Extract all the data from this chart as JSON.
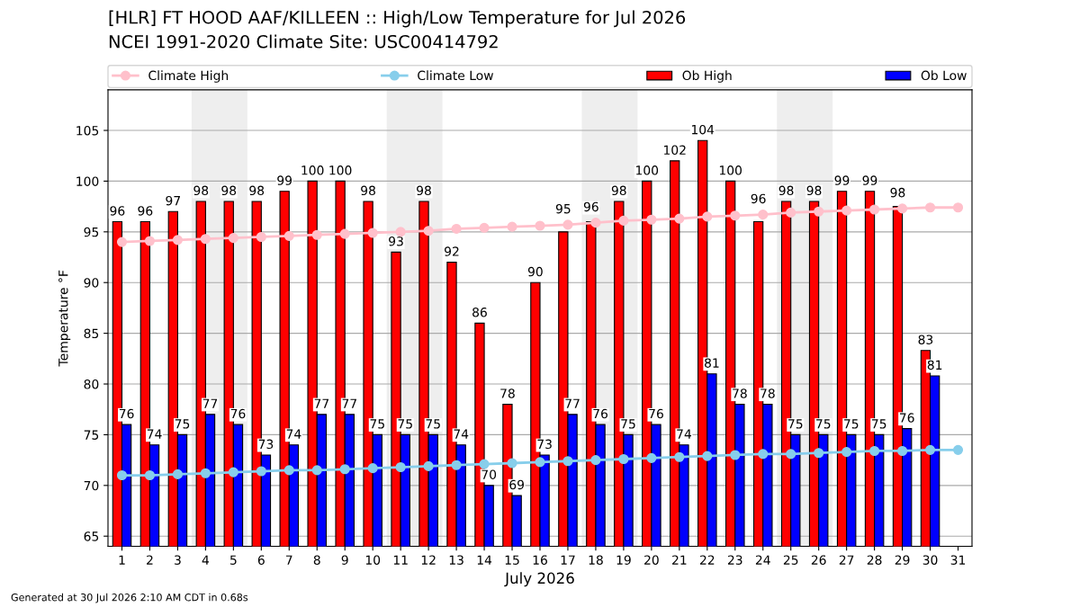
{
  "chart_data": {
    "type": "bar",
    "title": "[HLR] FT HOOD AAF/KILLEEN :: High/Low Temperature for Jul 2026",
    "subtitle": "NCEI 1991-2020 Climate Site: USC00414792",
    "xlabel": "July 2026",
    "ylabel": "Temperature °F",
    "categories": [
      "1",
      "2",
      "3",
      "4",
      "5",
      "6",
      "7",
      "8",
      "9",
      "10",
      "11",
      "12",
      "13",
      "14",
      "15",
      "16",
      "17",
      "18",
      "19",
      "20",
      "21",
      "22",
      "23",
      "24",
      "25",
      "26",
      "27",
      "28",
      "29",
      "30",
      "31"
    ],
    "series": [
      {
        "name": "Climate High",
        "type": "line",
        "color": "#ffc0cb",
        "marker": "circle",
        "values": [
          94.0,
          94.1,
          94.2,
          94.3,
          94.4,
          94.5,
          94.6,
          94.7,
          94.8,
          94.9,
          95.0,
          95.1,
          95.3,
          95.4,
          95.5,
          95.6,
          95.7,
          95.9,
          96.1,
          96.2,
          96.3,
          96.5,
          96.6,
          96.7,
          96.9,
          97.0,
          97.1,
          97.2,
          97.3,
          97.4,
          97.4
        ]
      },
      {
        "name": "Climate Low",
        "type": "line",
        "color": "#87ceeb",
        "marker": "circle",
        "values": [
          71.0,
          71.0,
          71.1,
          71.2,
          71.3,
          71.4,
          71.5,
          71.5,
          71.6,
          71.7,
          71.8,
          71.9,
          72.0,
          72.1,
          72.2,
          72.3,
          72.4,
          72.5,
          72.6,
          72.7,
          72.8,
          72.9,
          73.0,
          73.1,
          73.1,
          73.2,
          73.3,
          73.4,
          73.4,
          73.5,
          73.5
        ]
      },
      {
        "name": "Ob High",
        "color": "#ff0000",
        "values": [
          96,
          96,
          97,
          98,
          98,
          98,
          99,
          100,
          100,
          98,
          93,
          98,
          92,
          86,
          78,
          90,
          95,
          96,
          98,
          100,
          102,
          104,
          100,
          96,
          98,
          98,
          99,
          99,
          97.5,
          83.3,
          null
        ],
        "value_labels": [
          "96",
          "96",
          "97",
          "98",
          "98",
          "98",
          "99",
          "100",
          "100",
          "98",
          "93",
          "98",
          "92",
          "86",
          "78",
          "90",
          "95",
          "96",
          "98",
          "100",
          "102",
          "104",
          "100",
          "96",
          "98",
          "98",
          "99",
          "99",
          "98",
          "83",
          null
        ]
      },
      {
        "name": "Ob Low",
        "color": "#0000ff",
        "values": [
          76,
          74,
          75,
          77,
          76,
          73,
          74,
          77,
          77,
          75,
          75,
          75,
          74,
          70,
          69,
          73,
          77,
          76,
          75,
          76,
          74,
          81,
          78,
          78,
          75,
          75,
          75,
          75,
          75.6,
          80.8,
          null
        ],
        "value_labels": [
          "76",
          "74",
          "75",
          "77",
          "76",
          "73",
          "74",
          "77",
          "77",
          "75",
          "75",
          "75",
          "74",
          "70",
          "69",
          "73",
          "77",
          "76",
          "75",
          "76",
          "74",
          "81",
          "78",
          "78",
          "75",
          "75",
          "75",
          "75",
          "76",
          "81",
          null
        ]
      }
    ],
    "ylim": [
      64,
      109
    ],
    "yticks": [
      65,
      70,
      75,
      80,
      85,
      90,
      95,
      100,
      105
    ],
    "grid": "y",
    "legend": "top",
    "bands": [
      {
        "axis": "x",
        "from": "4",
        "to": "5",
        "color": "#eeeeee"
      },
      {
        "axis": "x",
        "from": "11",
        "to": "12",
        "color": "#eeeeee"
      },
      {
        "axis": "x",
        "from": "18",
        "to": "19",
        "color": "#eeeeee"
      },
      {
        "axis": "x",
        "from": "25",
        "to": "26",
        "color": "#eeeeee"
      }
    ],
    "annotations": [
      "Generated at 30 Jul 2026 2:10 AM CDT in 0.68s"
    ]
  }
}
